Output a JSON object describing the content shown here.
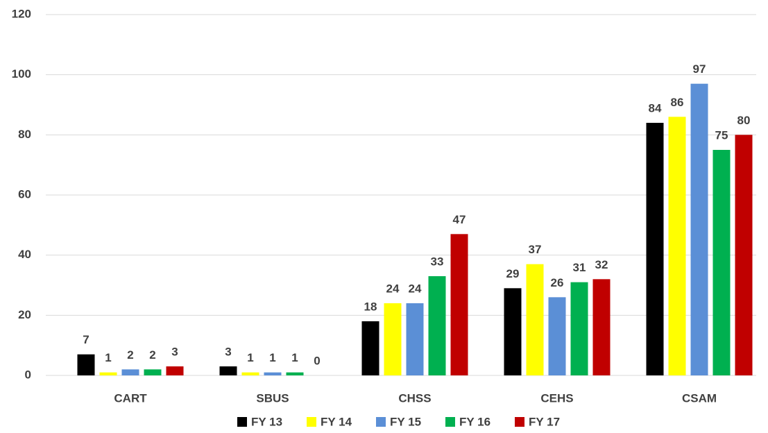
{
  "chart_data": {
    "type": "bar",
    "categories": [
      "CART",
      "SBUS",
      "CHSS",
      "CEHS",
      "CSAM"
    ],
    "series": [
      {
        "name": "FY 13",
        "color": "#000000",
        "values": [
          7,
          3,
          18,
          29,
          84
        ]
      },
      {
        "name": "FY 14",
        "color": "#ffff00",
        "values": [
          1,
          1,
          24,
          37,
          86
        ]
      },
      {
        "name": "FY 15",
        "color": "#5b8fd6",
        "values": [
          2,
          1,
          24,
          26,
          97
        ]
      },
      {
        "name": "FY 16",
        "color": "#00b050",
        "values": [
          2,
          1,
          33,
          31,
          75
        ]
      },
      {
        "name": "FY 17",
        "color": "#c00000",
        "values": [
          3,
          0,
          47,
          32,
          80
        ]
      }
    ],
    "ylim": [
      0,
      120
    ],
    "yticks": [
      0,
      20,
      40,
      60,
      80,
      100,
      120
    ],
    "grid": true,
    "legend": "bottom"
  }
}
